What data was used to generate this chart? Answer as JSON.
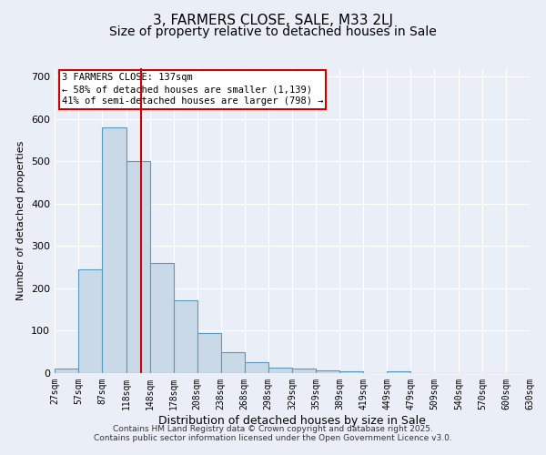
{
  "title1": "3, FARMERS CLOSE, SALE, M33 2LJ",
  "title2": "Size of property relative to detached houses in Sale",
  "xlabel": "Distribution of detached houses by size in Sale",
  "ylabel": "Number of detached properties",
  "bar_edges": [
    27,
    57,
    87,
    118,
    148,
    178,
    208,
    238,
    268,
    298,
    329,
    359,
    389,
    419,
    449,
    479,
    509,
    540,
    570,
    600,
    630
  ],
  "bar_heights": [
    10,
    245,
    580,
    500,
    260,
    172,
    95,
    50,
    25,
    13,
    10,
    7,
    5,
    0,
    5,
    0,
    0,
    0,
    0,
    0,
    0
  ],
  "bar_color": "#c9d9e8",
  "bar_edge_color": "#5a9abf",
  "bar_linewidth": 0.8,
  "red_line_x": 137,
  "red_line_color": "#cc0000",
  "annotation_box_text": "3 FARMERS CLOSE: 137sqm\n← 58% of detached houses are smaller (1,139)\n41% of semi-detached houses are larger (798) →",
  "annotation_box_color": "#cc0000",
  "annotation_text_color": "#000000",
  "bg_color": "#eaeff7",
  "plot_bg_color": "#eaeff7",
  "grid_color": "#ffffff",
  "footer1": "Contains HM Land Registry data © Crown copyright and database right 2025.",
  "footer2": "Contains public sector information licensed under the Open Government Licence v3.0.",
  "ylim": [
    0,
    720
  ],
  "xlim": [
    27,
    630
  ],
  "tick_labels": [
    "27sqm",
    "57sqm",
    "87sqm",
    "118sqm",
    "148sqm",
    "178sqm",
    "208sqm",
    "238sqm",
    "268sqm",
    "298sqm",
    "329sqm",
    "359sqm",
    "389sqm",
    "419sqm",
    "449sqm",
    "479sqm",
    "509sqm",
    "540sqm",
    "570sqm",
    "600sqm",
    "630sqm"
  ],
  "title1_fontsize": 11,
  "title2_fontsize": 10,
  "xlabel_fontsize": 9,
  "ylabel_fontsize": 8,
  "tick_fontsize": 7,
  "ytick_fontsize": 8,
  "ann_fontsize": 7.5,
  "footer_fontsize": 6.5
}
